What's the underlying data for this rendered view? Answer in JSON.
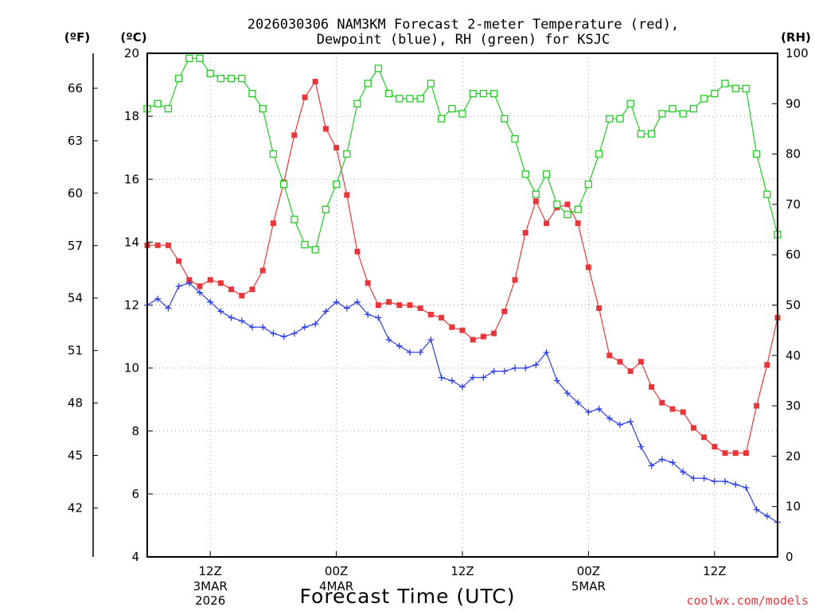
{
  "chart_data": {
    "type": "line",
    "title": [
      "2026030306 NAM3KM Forecast 2-meter Temperature (red),",
      "Dewpoint (blue), RH (green) for KSJC"
    ],
    "xlabel": "Forecast Time (UTC)",
    "credit": "coolwx.com/models",
    "units": {
      "fahrenheit": "(ºF)",
      "celsius": "(ºC)",
      "rh": "(RH)"
    },
    "x_range_hours": [
      0,
      60
    ],
    "ylim_celsius": [
      4,
      20
    ],
    "ylim_rh": [
      0,
      100
    ],
    "y_left_ticks_c": [
      "4",
      "6",
      "8",
      "10",
      "12",
      "14",
      "16",
      "18",
      "20"
    ],
    "y_left_ticks_f": [
      "42",
      "45",
      "48",
      "51",
      "54",
      "57",
      "60",
      "63",
      "66"
    ],
    "y_right_ticks_rh": [
      "0",
      "10",
      "20",
      "30",
      "40",
      "50",
      "60",
      "70",
      "80",
      "90",
      "100"
    ],
    "x_ticks": [
      {
        "hour": 6,
        "label": "12Z",
        "sub": "3MAR",
        "sub2": "2026"
      },
      {
        "hour": 18,
        "label": "00Z",
        "sub": "4MAR",
        "sub2": ""
      },
      {
        "hour": 30,
        "label": "12Z",
        "sub": "",
        "sub2": ""
      },
      {
        "hour": 42,
        "label": "00Z",
        "sub": "5MAR",
        "sub2": ""
      },
      {
        "hour": 54,
        "label": "12Z",
        "sub": "",
        "sub2": ""
      }
    ],
    "colors": {
      "temperature": "#e8373a",
      "dewpoint": "#2b3de6",
      "rh": "#22cc22",
      "grid": "#a0a0a0"
    },
    "series": [
      {
        "name": "Temperature",
        "axis": "celsius",
        "marker": "filled-square",
        "values": [
          13.9,
          13.9,
          13.9,
          13.4,
          12.8,
          12.6,
          12.8,
          12.7,
          12.5,
          12.3,
          12.5,
          13.1,
          14.6,
          15.9,
          17.4,
          18.6,
          19.1,
          17.6,
          17.0,
          15.5,
          13.7,
          12.7,
          12.0,
          12.1,
          12.0,
          12.0,
          11.9,
          11.7,
          11.6,
          11.3,
          11.2,
          10.9,
          11.0,
          11.1,
          11.8,
          12.8,
          14.3,
          15.3,
          14.6,
          15.1,
          15.2,
          14.6,
          13.2,
          11.9,
          10.4,
          10.2,
          9.9,
          10.2,
          9.4,
          8.9,
          8.7,
          8.6,
          8.1,
          7.8,
          7.5,
          7.3,
          7.3,
          7.3,
          8.8,
          10.1,
          11.6
        ]
      },
      {
        "name": "Dewpoint",
        "axis": "celsius",
        "marker": "plus",
        "values": [
          12.0,
          12.2,
          11.9,
          12.6,
          12.7,
          12.4,
          12.1,
          11.8,
          11.6,
          11.5,
          11.3,
          11.3,
          11.1,
          11.0,
          11.1,
          11.3,
          11.4,
          11.8,
          12.1,
          11.9,
          12.1,
          11.7,
          11.6,
          10.9,
          10.7,
          10.5,
          10.5,
          10.9,
          9.7,
          9.6,
          9.4,
          9.7,
          9.7,
          9.9,
          9.9,
          10.0,
          10.0,
          10.1,
          10.5,
          9.6,
          9.2,
          8.9,
          8.6,
          8.7,
          8.4,
          8.2,
          8.3,
          7.5,
          6.9,
          7.1,
          7.0,
          6.7,
          6.5,
          6.5,
          6.4,
          6.4,
          6.3,
          6.2,
          5.5,
          5.3,
          5.1
        ]
      },
      {
        "name": "RH",
        "axis": "rh",
        "marker": "open-square",
        "values": [
          89,
          90,
          89,
          95,
          99,
          99,
          96,
          95,
          95,
          95,
          92,
          89,
          80,
          74,
          67,
          62,
          61,
          69,
          74,
          80,
          90,
          94,
          97,
          92,
          91,
          91,
          91,
          94,
          87,
          89,
          88,
          92,
          92,
          92,
          87,
          83,
          76,
          72,
          76,
          70,
          68,
          69,
          74,
          80,
          87,
          87,
          90,
          84,
          84,
          88,
          89,
          88,
          89,
          91,
          92,
          94,
          93,
          93,
          80,
          72,
          64
        ]
      }
    ]
  }
}
